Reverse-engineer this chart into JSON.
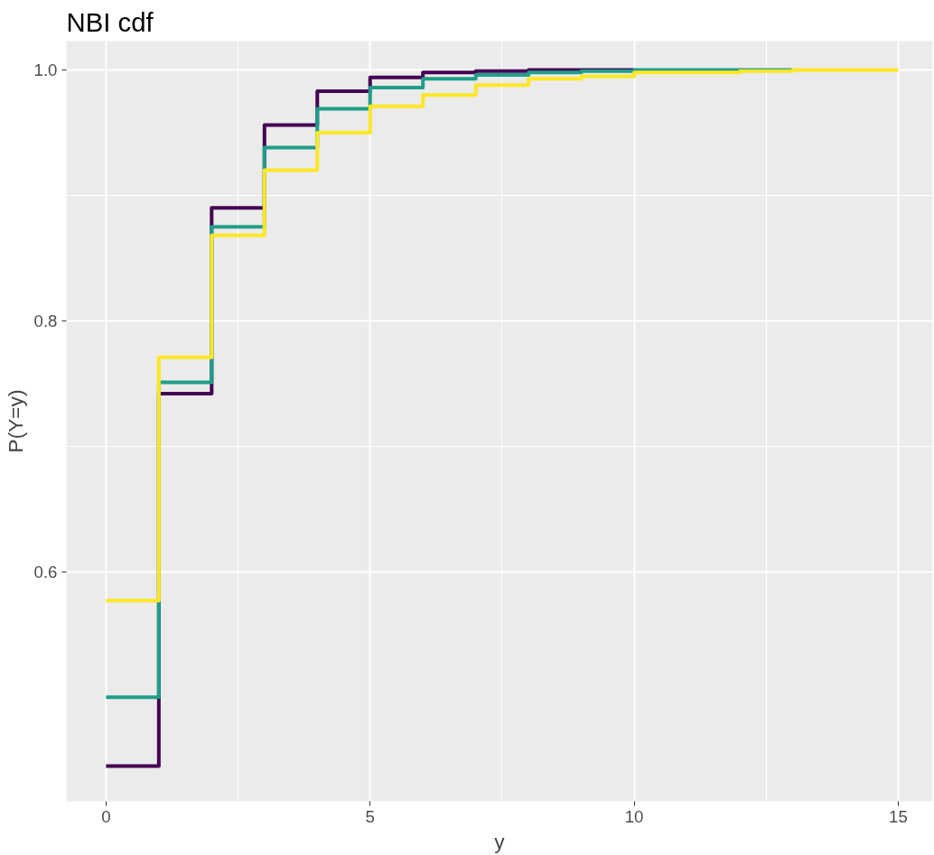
{
  "chart_data": {
    "type": "step",
    "title": "NBI cdf",
    "xlabel": "y",
    "ylabel": "P(Y=y)",
    "x": [
      0,
      1,
      2,
      3,
      4,
      5,
      6,
      7,
      8,
      9,
      10,
      11,
      12,
      13,
      14,
      15
    ],
    "series": [
      {
        "color": "#440154",
        "values": [
          0.445,
          0.742,
          0.89,
          0.956,
          0.983,
          0.994,
          0.998,
          0.999,
          1.0,
          1.0,
          1.0,
          null,
          null,
          null,
          null,
          null
        ]
      },
      {
        "color": "#1f9e89",
        "values": [
          0.5,
          0.751,
          0.875,
          0.938,
          0.969,
          0.986,
          0.993,
          0.996,
          0.998,
          0.999,
          1.0,
          1.0,
          1.0,
          1.0,
          null,
          null
        ]
      },
      {
        "color": "#fde725",
        "values": [
          0.577,
          0.771,
          0.868,
          0.92,
          0.95,
          0.971,
          0.98,
          0.988,
          0.993,
          0.995,
          0.998,
          0.998,
          0.999,
          1.0,
          1.0,
          1.0
        ]
      }
    ],
    "xlim": [
      -0.75,
      15.65
    ],
    "ylim": [
      0.417,
      1.023
    ],
    "xticks": [
      0,
      5,
      10,
      15
    ],
    "yticks": [
      0.6,
      0.8,
      {
        "value": 1.0,
        "label": "1.0"
      }
    ],
    "grid": true
  }
}
